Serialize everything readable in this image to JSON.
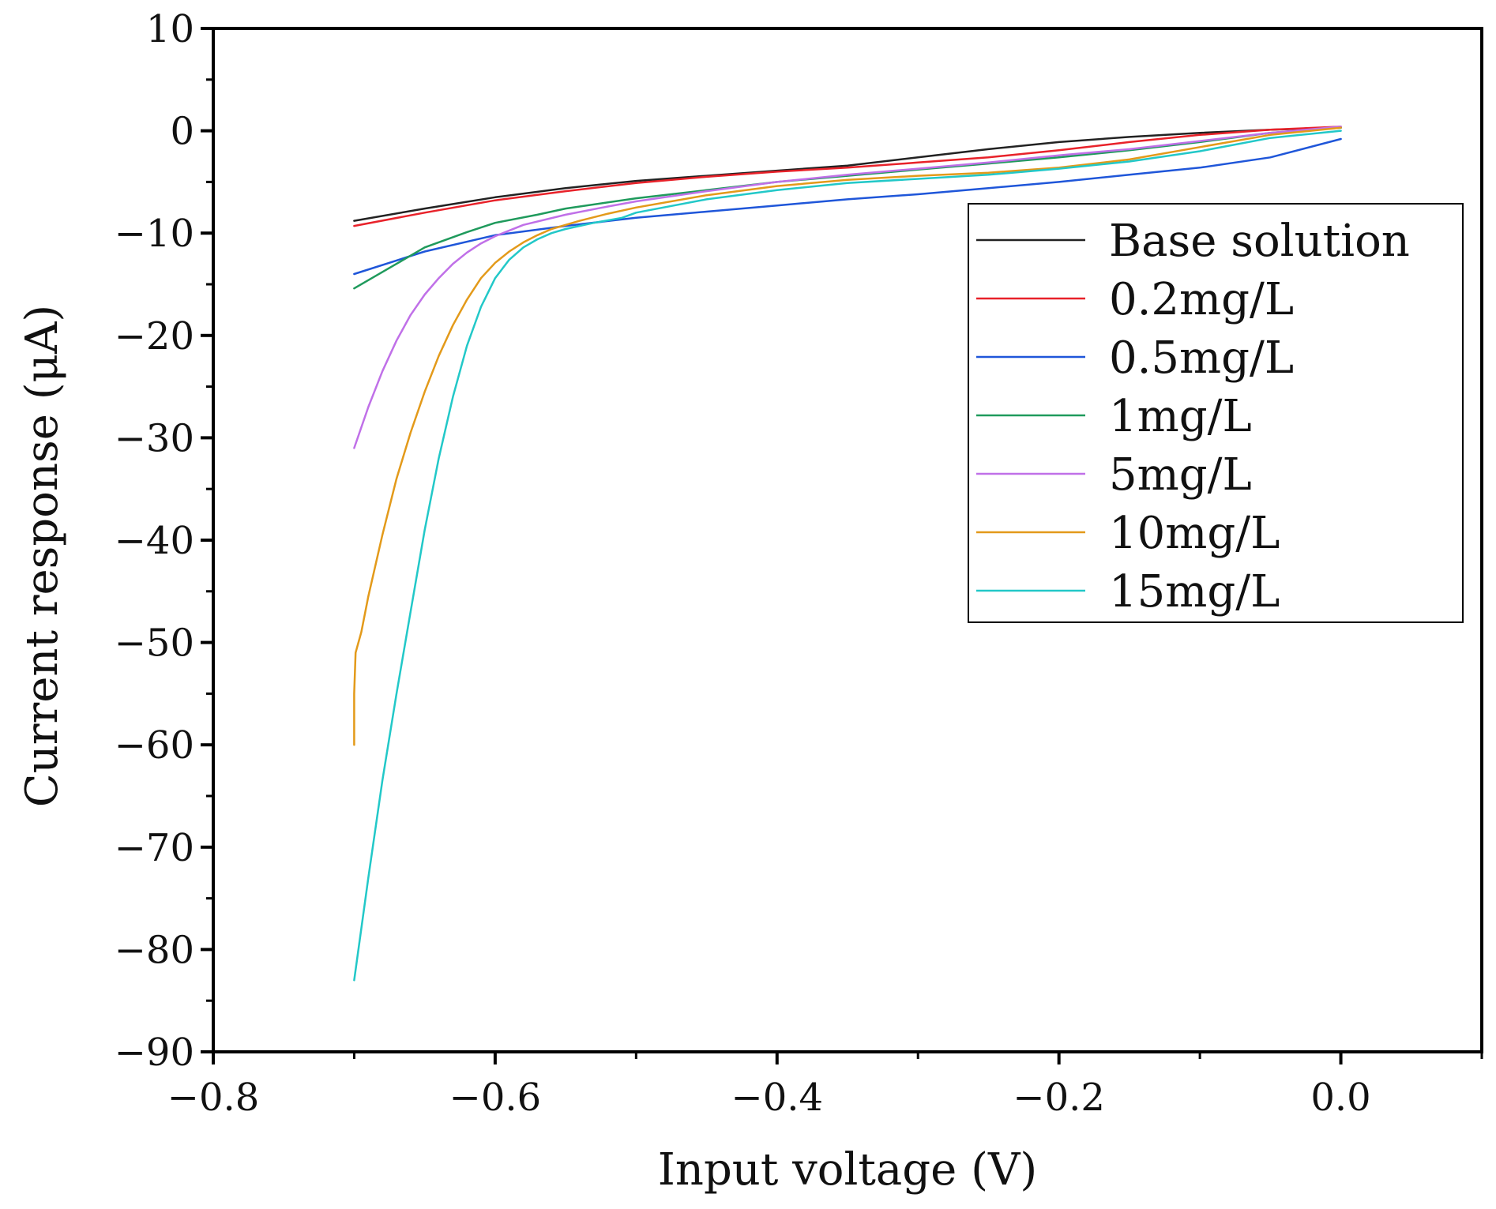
{
  "chart_data": {
    "type": "line",
    "title": "",
    "xlabel": "Input voltage (V)",
    "ylabel": "Current response (μA)",
    "xlim": [
      -0.8,
      0.1
    ],
    "ylim": [
      -90,
      10
    ],
    "x_ticks": [
      -0.8,
      -0.6,
      -0.4,
      -0.2,
      0.0
    ],
    "x_tick_labels": [
      "−0.8",
      "−0.6",
      "−0.4",
      "−0.2",
      "0.0"
    ],
    "y_ticks": [
      10,
      0,
      -10,
      -20,
      -30,
      -40,
      -50,
      -60,
      -70,
      -80,
      -90
    ],
    "y_tick_labels": [
      "10",
      "0",
      "−10",
      "−20",
      "−30",
      "−40",
      "−50",
      "−60",
      "−70",
      "−80",
      "−90"
    ],
    "grid": false,
    "legend_position": "top-right",
    "series": [
      {
        "name": "Base solution",
        "color": "#222222",
        "x": [
          -0.7,
          -0.65,
          -0.6,
          -0.55,
          -0.5,
          -0.45,
          -0.4,
          -0.35,
          -0.3,
          -0.25,
          -0.2,
          -0.15,
          -0.1,
          -0.05,
          0.0
        ],
        "y": [
          -8.8,
          -7.6,
          -6.5,
          -5.6,
          -4.9,
          -4.4,
          -3.9,
          -3.4,
          -2.6,
          -1.8,
          -1.1,
          -0.6,
          -0.2,
          0.1,
          0.3
        ]
      },
      {
        "name": "0.2mg/L",
        "color": "#e8222a",
        "x": [
          -0.7,
          -0.65,
          -0.6,
          -0.55,
          -0.5,
          -0.45,
          -0.4,
          -0.35,
          -0.3,
          -0.25,
          -0.2,
          -0.15,
          -0.1,
          -0.05,
          0.0
        ],
        "y": [
          -9.3,
          -8.0,
          -6.8,
          -5.9,
          -5.1,
          -4.5,
          -4.0,
          -3.6,
          -3.1,
          -2.6,
          -1.9,
          -1.1,
          -0.4,
          0.1,
          0.4
        ]
      },
      {
        "name": "0.5mg/L",
        "color": "#1f56d9",
        "x": [
          -0.7,
          -0.65,
          -0.6,
          -0.55,
          -0.5,
          -0.45,
          -0.4,
          -0.35,
          -0.3,
          -0.25,
          -0.2,
          -0.15,
          -0.1,
          -0.05,
          0.0
        ],
        "y": [
          -14.0,
          -11.8,
          -10.2,
          -9.3,
          -8.5,
          -7.9,
          -7.3,
          -6.7,
          -6.2,
          -5.6,
          -5.0,
          -4.3,
          -3.6,
          -2.6,
          -0.8
        ]
      },
      {
        "name": "1mg/L",
        "color": "#1f9a5c",
        "x": [
          -0.7,
          -0.67,
          -0.65,
          -0.62,
          -0.6,
          -0.57,
          -0.55,
          -0.5,
          -0.45,
          -0.4,
          -0.35,
          -0.3,
          -0.25,
          -0.2,
          -0.15,
          -0.1,
          -0.05,
          0.0
        ],
        "y": [
          -15.4,
          -13.0,
          -11.4,
          -9.9,
          -9.0,
          -8.2,
          -7.6,
          -6.6,
          -5.8,
          -5.0,
          -4.4,
          -3.8,
          -3.2,
          -2.6,
          -1.9,
          -1.1,
          -0.2,
          0.3
        ]
      },
      {
        "name": "5mg/L",
        "color": "#c070e8",
        "x": [
          -0.7,
          -0.69,
          -0.68,
          -0.67,
          -0.66,
          -0.65,
          -0.64,
          -0.63,
          -0.62,
          -0.61,
          -0.6,
          -0.58,
          -0.55,
          -0.52,
          -0.5,
          -0.45,
          -0.4,
          -0.35,
          -0.3,
          -0.25,
          -0.2,
          -0.15,
          -0.1,
          -0.05,
          0.0
        ],
        "y": [
          -31.0,
          -27.0,
          -23.5,
          -20.5,
          -18.0,
          -16.0,
          -14.4,
          -13.0,
          -11.9,
          -11.0,
          -10.3,
          -9.2,
          -8.2,
          -7.4,
          -6.9,
          -5.9,
          -5.0,
          -4.3,
          -3.7,
          -3.1,
          -2.4,
          -1.8,
          -1.0,
          -0.2,
          0.4
        ]
      },
      {
        "name": "10mg/L",
        "color": "#e39a1a",
        "x": [
          -0.7,
          -0.7,
          -0.699,
          -0.695,
          -0.69,
          -0.68,
          -0.67,
          -0.66,
          -0.65,
          -0.64,
          -0.63,
          -0.62,
          -0.61,
          -0.6,
          -0.59,
          -0.58,
          -0.57,
          -0.56,
          -0.54,
          -0.52,
          -0.5,
          -0.45,
          -0.4,
          -0.35,
          -0.3,
          -0.25,
          -0.2,
          -0.15,
          -0.1,
          -0.05,
          0.0
        ],
        "y": [
          -60.0,
          -55.0,
          -51.0,
          -49.0,
          -45.5,
          -39.5,
          -34.0,
          -29.5,
          -25.5,
          -22.0,
          -19.0,
          -16.5,
          -14.4,
          -12.9,
          -11.8,
          -10.9,
          -10.2,
          -9.6,
          -8.8,
          -8.1,
          -7.5,
          -6.3,
          -5.4,
          -4.8,
          -4.4,
          -4.1,
          -3.6,
          -2.8,
          -1.6,
          -0.4,
          0.3
        ]
      },
      {
        "name": "15mg/L",
        "color": "#22c8c8",
        "x": [
          -0.7,
          -0.69,
          -0.68,
          -0.67,
          -0.66,
          -0.65,
          -0.64,
          -0.63,
          -0.62,
          -0.61,
          -0.6,
          -0.59,
          -0.58,
          -0.57,
          -0.56,
          -0.55,
          -0.53,
          -0.51,
          -0.5,
          -0.45,
          -0.4,
          -0.35,
          -0.3,
          -0.25,
          -0.2,
          -0.15,
          -0.1,
          -0.05,
          0.0
        ],
        "y": [
          -83.0,
          -73.0,
          -63.5,
          -55.0,
          -47.0,
          -39.0,
          -32.0,
          -26.0,
          -21.0,
          -17.2,
          -14.4,
          -12.6,
          -11.4,
          -10.6,
          -10.0,
          -9.6,
          -9.0,
          -8.5,
          -8.0,
          -6.7,
          -5.8,
          -5.1,
          -4.7,
          -4.3,
          -3.7,
          -3.0,
          -2.0,
          -0.7,
          0.0
        ]
      }
    ]
  }
}
